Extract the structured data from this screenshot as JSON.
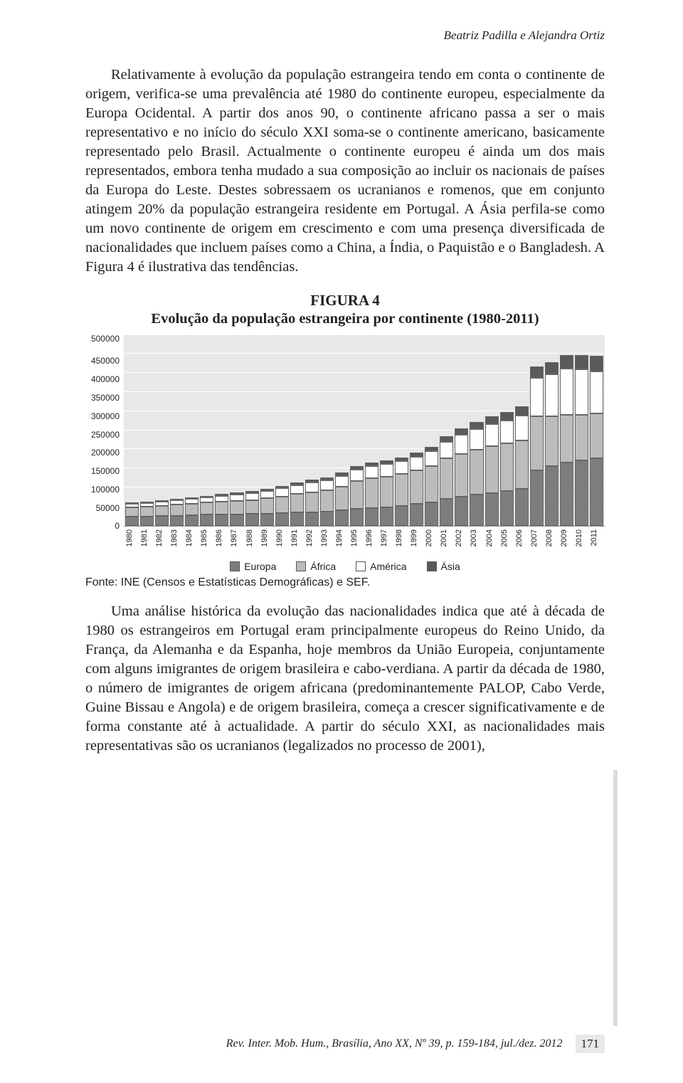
{
  "running_head": "Beatriz Padilla e Alejandra Ortiz",
  "paragraph_1": "Relativamente à evolução da população estrangeira tendo em conta o continente de origem, verifica-se uma prevalência até 1980 do continente europeu, especialmente da Europa Ocidental. A partir dos anos 90, o continente africano passa a ser o mais representativo e no início do século XXI soma-se o continente americano, basicamente representado pelo Brasil. Actualmente o continente europeu é ainda um dos mais representados, embora tenha mudado a sua composição ao incluir os nacionais de países da Europa do Leste. Destes sobressaem os ucranianos e romenos, que em conjunto atingem 20% da população estrangeira residente em Portugal. A Ásia perfila-se como um novo continente de origem em crescimento e com uma presença diversificada de nacionalidades que incluem países como a China, a Índia, o Paquistão e o Bangladesh. A Figura 4 é ilustrativa das tendências.",
  "figure": {
    "number": "FIGURA 4",
    "title": "Evolução da população estrangeira por continente (1980-2011)",
    "type": "stacked-bar",
    "ymax": 500000,
    "y_ticks": [
      "500000",
      "450000",
      "400000",
      "350000",
      "300000",
      "250000",
      "200000",
      "150000",
      "100000",
      "50000",
      "0"
    ],
    "plot_bg": "#e8e8e8",
    "grid_color": "#ffffff",
    "series": [
      {
        "name": "Europa",
        "color": "#7d7d7d"
      },
      {
        "name": "África",
        "color": "#bcbcbc"
      },
      {
        "name": "América",
        "color": "#ffffff"
      },
      {
        "name": "Ásia",
        "color": "#5a5a5a"
      }
    ],
    "categories": [
      "1980",
      "1981",
      "1982",
      "1983",
      "1984",
      "1985",
      "1986",
      "1987",
      "1988",
      "1989",
      "1990",
      "1991",
      "1992",
      "1993",
      "1994",
      "1995",
      "1996",
      "1997",
      "1998",
      "1999",
      "2000",
      "2001",
      "2002",
      "2003",
      "2004",
      "2005",
      "2006",
      "2007",
      "2008",
      "2009",
      "2010",
      "2011"
    ],
    "stacks": [
      [
        23000,
        25000,
        8000,
        2000
      ],
      [
        24000,
        26000,
        9000,
        2500
      ],
      [
        25000,
        27000,
        10000,
        3000
      ],
      [
        26000,
        28000,
        12000,
        3000
      ],
      [
        27000,
        30000,
        13000,
        3500
      ],
      [
        28000,
        32000,
        14000,
        4000
      ],
      [
        29000,
        34000,
        15000,
        4500
      ],
      [
        29000,
        35000,
        17000,
        5000
      ],
      [
        30000,
        37000,
        18000,
        5000
      ],
      [
        31000,
        40000,
        20000,
        5500
      ],
      [
        32000,
        44000,
        22000,
        6000
      ],
      [
        34000,
        48000,
        24000,
        6500
      ],
      [
        35000,
        52000,
        26000,
        7000
      ],
      [
        37000,
        55000,
        27000,
        7500
      ],
      [
        40000,
        62000,
        28000,
        8000
      ],
      [
        44000,
        72000,
        30000,
        8500
      ],
      [
        46000,
        78000,
        32000,
        9000
      ],
      [
        48000,
        80000,
        33000,
        9500
      ],
      [
        52000,
        82000,
        34000,
        10000
      ],
      [
        56000,
        88000,
        36000,
        10500
      ],
      [
        60000,
        96000,
        38000,
        12000
      ],
      [
        70000,
        105000,
        44000,
        14000
      ],
      [
        75000,
        112000,
        50000,
        16000
      ],
      [
        80000,
        118000,
        54000,
        18000
      ],
      [
        85000,
        122000,
        58000,
        20000
      ],
      [
        90000,
        125000,
        60000,
        22000
      ],
      [
        95000,
        128000,
        64000,
        24000
      ],
      [
        145000,
        140000,
        100000,
        30000
      ],
      [
        155000,
        130000,
        110000,
        32000
      ],
      [
        165000,
        125000,
        120000,
        36000
      ],
      [
        170000,
        120000,
        118000,
        38000
      ],
      [
        175000,
        118000,
        110000,
        40000
      ]
    ],
    "source": "Fonte: INE (Censos e Estatísticas Demográficas) e SEF."
  },
  "paragraph_2": "Uma análise histórica da evolução das nacionalidades indica que até à década de 1980 os estrangeiros em Portugal eram principalmente europeus do Reino Unido, da França, da Alemanha e da Espanha, hoje membros da União Europeia, conjuntamente com alguns imigrantes de origem brasileira e cabo-verdiana. A partir da década de 1980, o número de imigrantes de origem africana (predominantemente PALOP, Cabo Verde, Guine Bissau e Angola) e de origem brasileira, começa a crescer significativamente e de forma constante até à actualidade. A partir do século XXI, as nacionalidades mais representativas são os ucranianos (legalizados no processo de 2001),",
  "footer": {
    "citation": "Rev. Inter. Mob. Hum., Brasília, Ano XX, Nº 39, p. 159-184, jul./dez. 2012",
    "page_number": "171"
  }
}
